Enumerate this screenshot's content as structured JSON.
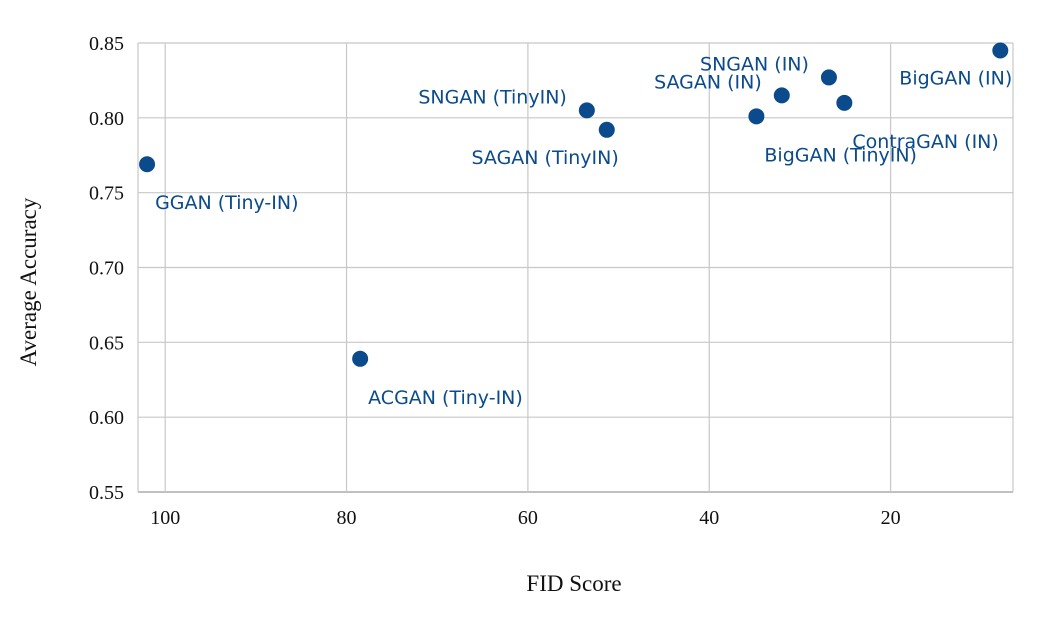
{
  "chart_data": {
    "type": "scatter",
    "title": "",
    "xlabel": "FID Score",
    "ylabel": "Average Accuracy",
    "xlim": [
      103,
      6.5
    ],
    "ylim": [
      0.55,
      0.85
    ],
    "x_reversed": true,
    "grid": true,
    "legend": "none",
    "point_color": "#0b4a8b",
    "x_ticks": [
      {
        "value": 100,
        "label": "100"
      },
      {
        "value": 80,
        "label": "80"
      },
      {
        "value": 60,
        "label": "60"
      },
      {
        "value": 40,
        "label": "40"
      },
      {
        "value": 20,
        "label": "20"
      }
    ],
    "y_ticks": [
      {
        "value": 0.55,
        "label": "0.55"
      },
      {
        "value": 0.6,
        "label": "0.60"
      },
      {
        "value": 0.65,
        "label": "0.65"
      },
      {
        "value": 0.7,
        "label": "0.70"
      },
      {
        "value": 0.75,
        "label": "0.75"
      },
      {
        "value": 0.8,
        "label": "0.80"
      },
      {
        "value": 0.85,
        "label": "0.85"
      }
    ],
    "points": [
      {
        "label": "GGAN (Tiny-IN)",
        "x": 102,
        "y": 0.769,
        "label_pos": "below-right"
      },
      {
        "label": "ACGAN (Tiny-IN)",
        "x": 78.5,
        "y": 0.639,
        "label_pos": "below-right"
      },
      {
        "label": "SNGAN (TinyIN)",
        "x": 53.5,
        "y": 0.805,
        "label_pos": "above-left"
      },
      {
        "label": "SAGAN (TinyIN)",
        "x": 51.3,
        "y": 0.792,
        "label_pos": "below-left"
      },
      {
        "label": "BigGAN (TinyIN)",
        "x": 34.8,
        "y": 0.801,
        "label_pos": "below-right"
      },
      {
        "label": "SAGAN (IN)",
        "x": 32,
        "y": 0.815,
        "label_pos": "above-left"
      },
      {
        "label": "SNGAN (IN)",
        "x": 26.8,
        "y": 0.827,
        "label_pos": "above-left"
      },
      {
        "label": "ContraGAN (IN)",
        "x": 25.1,
        "y": 0.81,
        "label_pos": "below-right"
      },
      {
        "label": "BigGAN (IN)",
        "x": 7.9,
        "y": 0.845,
        "label_pos": "below-left"
      }
    ]
  }
}
